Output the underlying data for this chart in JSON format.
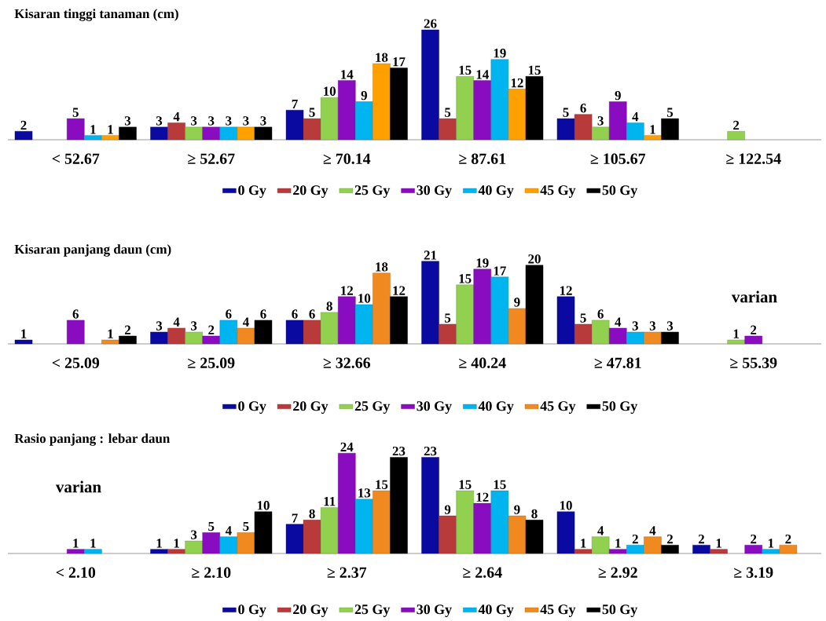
{
  "chart_data": [
    {
      "type": "bar",
      "title": "Kisaran tinggi tanaman (cm)",
      "categories": [
        "< 52.67",
        "≥ 52.67",
        "≥ 70.14",
        "≥ 87.61",
        "≥ 105.67",
        "≥ 122.54"
      ],
      "data_labels": true,
      "legend": "bottom",
      "series": [
        {
          "name": "0 Gy",
          "color": "#0a0aa0",
          "values": [
            2,
            3,
            7,
            26,
            5,
            null
          ]
        },
        {
          "name": "20 Gy",
          "color": "#b83a3a",
          "values": [
            null,
            4,
            5,
            5,
            6,
            null
          ]
        },
        {
          "name": "25 Gy",
          "color": "#92d050",
          "values": [
            null,
            3,
            10,
            15,
            3,
            2
          ]
        },
        {
          "name": "30 Gy",
          "color": "#8a0cc0",
          "values": [
            5,
            3,
            14,
            14,
            9,
            null
          ]
        },
        {
          "name": "40 Gy",
          "color": "#00b4f0",
          "values": [
            1,
            3,
            9,
            19,
            4,
            null
          ]
        },
        {
          "name": "45 Gy",
          "color": "#ffa000",
          "values": [
            1,
            3,
            18,
            12,
            1,
            null
          ]
        },
        {
          "name": "50 Gy",
          "color": "#000000",
          "values": [
            3,
            3,
            17,
            15,
            5,
            null
          ]
        }
      ]
    },
    {
      "type": "bar",
      "title": "Kisaran panjang daun (cm)",
      "categories": [
        "< 25.09",
        "≥ 25.09",
        "≥ 32.66",
        "≥ 40.24",
        "≥ 47.81",
        "≥ 55.39"
      ],
      "data_labels": true,
      "legend": "bottom",
      "annotations": [
        "varian"
      ],
      "series": [
        {
          "name": "0 Gy",
          "color": "#0a0aa0",
          "values": [
            1,
            3,
            6,
            21,
            12,
            null
          ]
        },
        {
          "name": "20 Gy",
          "color": "#b83a3a",
          "values": [
            null,
            4,
            6,
            5,
            5,
            null
          ]
        },
        {
          "name": "25 Gy",
          "color": "#92d050",
          "values": [
            null,
            3,
            8,
            15,
            6,
            1
          ]
        },
        {
          "name": "30 Gy",
          "color": "#8a0cc0",
          "values": [
            6,
            2,
            12,
            19,
            4,
            2
          ]
        },
        {
          "name": "40 Gy",
          "color": "#00b4f0",
          "values": [
            null,
            6,
            10,
            17,
            3,
            null
          ]
        },
        {
          "name": "45 Gy",
          "color": "#f08a20",
          "values": [
            1,
            4,
            18,
            9,
            3,
            null
          ]
        },
        {
          "name": "50 Gy",
          "color": "#000000",
          "values": [
            2,
            6,
            12,
            20,
            3,
            null
          ]
        }
      ]
    },
    {
      "type": "bar",
      "title": "Rasio panjang : lebar daun",
      "categories": [
        "< 2.10",
        "≥ 2.10",
        "≥ 2.37",
        "≥ 2.64",
        "≥ 2.92",
        "≥ 3.19"
      ],
      "data_labels": true,
      "legend": "bottom",
      "annotations": [
        "varian"
      ],
      "series": [
        {
          "name": "0 Gy",
          "color": "#0a0aa0",
          "values": [
            null,
            1,
            7,
            23,
            10,
            2
          ]
        },
        {
          "name": "20 Gy",
          "color": "#b83a3a",
          "values": [
            null,
            1,
            8,
            9,
            1,
            1
          ]
        },
        {
          "name": "25 Gy",
          "color": "#92d050",
          "values": [
            null,
            3,
            11,
            15,
            4,
            null
          ]
        },
        {
          "name": "30 Gy",
          "color": "#8a0cc0",
          "values": [
            1,
            5,
            24,
            12,
            1,
            2
          ]
        },
        {
          "name": "40 Gy",
          "color": "#00b4f0",
          "values": [
            1,
            4,
            13,
            15,
            2,
            1
          ]
        },
        {
          "name": "45 Gy",
          "color": "#f08a20",
          "values": [
            null,
            5,
            15,
            9,
            4,
            2
          ]
        },
        {
          "name": "50 Gy",
          "color": "#000000",
          "values": [
            null,
            10,
            23,
            8,
            2,
            null
          ]
        }
      ]
    }
  ]
}
